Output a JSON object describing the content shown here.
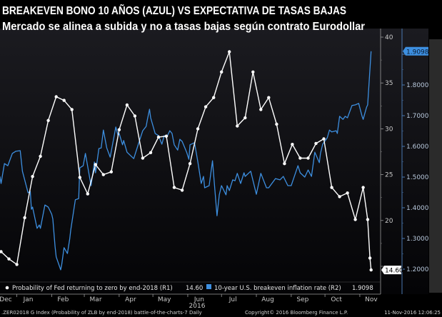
{
  "title": {
    "line1": "BREAKEVEN BONO 10 AÑOS (AZUL) VS EXPECTATIVA DE TASAS BAJAS",
    "line2": "Mercado se alinea a  subida y no a tasas bajas según contrato Eurodollar"
  },
  "footer": {
    "index": ".ZER02018 G Index (Probability of ZLB by end-2018) battle-of-the-charts-7  Daily",
    "copyright": "Copyright© 2016 Bloomberg Finance L.P.",
    "timestamp": "11-Nov-2016 12:06:25"
  },
  "colors": {
    "background": "#0b0b0e",
    "series_white": "#ffffff",
    "series_blue": "#3d8fe0",
    "panel": "#2b2b2b"
  },
  "chart_data": {
    "type": "line",
    "year_label": "2016",
    "x_ticks": [
      "Dec",
      "Jan",
      "Feb",
      "Mar",
      "Apr",
      "May",
      "Jun",
      "Jul",
      "Aug",
      "Sep",
      "Oct",
      "Nov"
    ],
    "x_tick_dates": [
      "2015-12-01",
      "2016-01-01",
      "2016-02-01",
      "2016-03-01",
      "2016-04-01",
      "2016-05-01",
      "2016-06-01",
      "2016-07-01",
      "2016-08-01",
      "2016-09-01",
      "2016-10-01",
      "2016-11-01"
    ],
    "xlim": [
      "2015-12-18",
      "2016-11-18"
    ],
    "y_left": {
      "label": "R1",
      "ylim": [
        14,
        40.5
      ],
      "ticks": [
        "15",
        "20",
        "25",
        "30",
        "35",
        "40"
      ]
    },
    "y_right": {
      "label": "R2",
      "ylim": [
        1.19,
        1.95
      ],
      "ticks": [
        "1.2000",
        "1.3000",
        "1.4000",
        "1.5000",
        "1.6000",
        "1.7000",
        "1.8000",
        "1.9000"
      ]
    },
    "grid": false,
    "legend_position": "bottom",
    "series": [
      {
        "name": "Probability of Fed returning to zero by end-2018 (R1)",
        "last_value": "14.60",
        "axis": "R1",
        "color": "#ffffff",
        "marker": "circle",
        "points": [
          [
            "2015-12-18",
            16.6
          ],
          [
            "2015-12-25",
            15.8
          ],
          [
            "2016-01-01",
            15.2
          ],
          [
            "2016-01-08",
            20.3
          ],
          [
            "2016-01-15",
            24.8
          ],
          [
            "2016-01-22",
            27.0
          ],
          [
            "2016-01-29",
            30.9
          ],
          [
            "2016-02-05",
            33.5
          ],
          [
            "2016-02-12",
            33.1
          ],
          [
            "2016-02-19",
            32.1
          ],
          [
            "2016-02-26",
            24.7
          ],
          [
            "2016-03-04",
            22.9
          ],
          [
            "2016-03-11",
            26.1
          ],
          [
            "2016-03-18",
            25.0
          ],
          [
            "2016-03-25",
            25.3
          ],
          [
            "2016-04-01",
            29.9
          ],
          [
            "2016-04-08",
            32.6
          ],
          [
            "2016-04-15",
            31.4
          ],
          [
            "2016-04-22",
            26.8
          ],
          [
            "2016-04-29",
            27.4
          ],
          [
            "2016-05-06",
            29.1
          ],
          [
            "2016-05-13",
            29.2
          ],
          [
            "2016-05-20",
            23.6
          ],
          [
            "2016-05-27",
            23.3
          ],
          [
            "2016-06-03",
            26.2
          ],
          [
            "2016-06-10",
            30.0
          ],
          [
            "2016-06-17",
            32.4
          ],
          [
            "2016-06-24",
            33.4
          ],
          [
            "2016-07-01",
            36.2
          ],
          [
            "2016-07-08",
            38.4
          ],
          [
            "2016-07-15",
            30.3
          ],
          [
            "2016-07-22",
            31.2
          ],
          [
            "2016-07-29",
            36.2
          ],
          [
            "2016-08-05",
            32.1
          ],
          [
            "2016-08-12",
            33.4
          ],
          [
            "2016-08-19",
            30.5
          ],
          [
            "2016-08-26",
            26.2
          ],
          [
            "2016-09-02",
            28.3
          ],
          [
            "2016-09-09",
            26.8
          ],
          [
            "2016-09-16",
            26.8
          ],
          [
            "2016-09-23",
            28.4
          ],
          [
            "2016-09-30",
            28.9
          ],
          [
            "2016-10-07",
            23.6
          ],
          [
            "2016-10-14",
            22.6
          ],
          [
            "2016-10-21",
            23.0
          ],
          [
            "2016-10-28",
            20.1
          ],
          [
            "2016-11-04",
            23.6
          ],
          [
            "2016-11-08",
            20.1
          ],
          [
            "2016-11-10",
            15.9
          ],
          [
            "2016-11-11",
            14.6
          ]
        ]
      },
      {
        "name": "10-year U.S. breakeven inflation rate (R2)",
        "last_value": "1.9098",
        "axis": "R2",
        "color": "#3d8fe0",
        "marker": "none",
        "points": [
          [
            "2015-12-17",
            1.502
          ],
          [
            "2015-12-18",
            1.479
          ],
          [
            "2015-12-21",
            1.544
          ],
          [
            "2015-12-24",
            1.537
          ],
          [
            "2015-12-28",
            1.577
          ],
          [
            "2015-12-31",
            1.584
          ],
          [
            "2016-01-04",
            1.586
          ],
          [
            "2016-01-06",
            1.519
          ],
          [
            "2016-01-11",
            1.449
          ],
          [
            "2016-01-13",
            1.453
          ],
          [
            "2016-01-14",
            1.395
          ],
          [
            "2016-01-15",
            1.402
          ],
          [
            "2016-01-19",
            1.333
          ],
          [
            "2016-01-21",
            1.344
          ],
          [
            "2016-01-22",
            1.333
          ],
          [
            "2016-01-26",
            1.409
          ],
          [
            "2016-01-29",
            1.402
          ],
          [
            "2016-02-01",
            1.379
          ],
          [
            "2016-02-02",
            1.363
          ],
          [
            "2016-02-04",
            1.274
          ],
          [
            "2016-02-05",
            1.24
          ],
          [
            "2016-02-09",
            1.198
          ],
          [
            "2016-02-10",
            1.216
          ],
          [
            "2016-02-12",
            1.27
          ],
          [
            "2016-02-15",
            1.251
          ],
          [
            "2016-02-17",
            1.298
          ],
          [
            "2016-02-18",
            1.328
          ],
          [
            "2016-02-22",
            1.426
          ],
          [
            "2016-02-25",
            1.43
          ],
          [
            "2016-02-26",
            1.53
          ],
          [
            "2016-02-29",
            1.537
          ],
          [
            "2016-03-02",
            1.577
          ],
          [
            "2016-03-07",
            1.472
          ],
          [
            "2016-03-10",
            1.549
          ],
          [
            "2016-03-11",
            1.514
          ],
          [
            "2016-03-14",
            1.593
          ],
          [
            "2016-03-16",
            1.595
          ],
          [
            "2016-03-18",
            1.653
          ],
          [
            "2016-03-21",
            1.595
          ],
          [
            "2016-03-24",
            1.565
          ],
          [
            "2016-03-29",
            1.663
          ],
          [
            "2016-03-31",
            1.635
          ],
          [
            "2016-04-01",
            1.642
          ],
          [
            "2016-04-04",
            1.605
          ],
          [
            "2016-04-05",
            1.619
          ],
          [
            "2016-04-08",
            1.581
          ],
          [
            "2016-04-14",
            1.56
          ],
          [
            "2016-04-18",
            1.607
          ],
          [
            "2016-04-22",
            1.651
          ],
          [
            "2016-04-25",
            1.665
          ],
          [
            "2016-04-26",
            1.686
          ],
          [
            "2016-04-28",
            1.721
          ],
          [
            "2016-04-29",
            1.693
          ],
          [
            "2016-05-03",
            1.642
          ],
          [
            "2016-05-06",
            1.635
          ],
          [
            "2016-05-09",
            1.607
          ],
          [
            "2016-05-11",
            1.635
          ],
          [
            "2016-05-13",
            1.628
          ],
          [
            "2016-05-16",
            1.651
          ],
          [
            "2016-05-18",
            1.642
          ],
          [
            "2016-05-20",
            1.605
          ],
          [
            "2016-05-23",
            1.588
          ],
          [
            "2016-05-25",
            1.623
          ],
          [
            "2016-05-27",
            1.616
          ],
          [
            "2016-05-31",
            1.581
          ],
          [
            "2016-06-02",
            1.558
          ],
          [
            "2016-06-03",
            1.605
          ],
          [
            "2016-06-07",
            1.612
          ],
          [
            "2016-06-10",
            1.549
          ],
          [
            "2016-06-13",
            1.479
          ],
          [
            "2016-06-15",
            1.502
          ],
          [
            "2016-06-16",
            1.465
          ],
          [
            "2016-06-20",
            1.472
          ],
          [
            "2016-06-23",
            1.553
          ],
          [
            "2016-06-27",
            1.374
          ],
          [
            "2016-06-29",
            1.442
          ],
          [
            "2016-07-01",
            1.472
          ],
          [
            "2016-07-05",
            1.442
          ],
          [
            "2016-07-06",
            1.472
          ],
          [
            "2016-07-08",
            1.456
          ],
          [
            "2016-07-11",
            1.491
          ],
          [
            "2016-07-13",
            1.488
          ],
          [
            "2016-07-15",
            1.512
          ],
          [
            "2016-07-18",
            1.479
          ],
          [
            "2016-07-21",
            1.514
          ],
          [
            "2016-07-22",
            1.502
          ],
          [
            "2016-07-27",
            1.519
          ],
          [
            "2016-08-01",
            1.444
          ],
          [
            "2016-08-05",
            1.512
          ],
          [
            "2016-08-10",
            1.465
          ],
          [
            "2016-08-12",
            1.465
          ],
          [
            "2016-08-18",
            1.495
          ],
          [
            "2016-08-22",
            1.491
          ],
          [
            "2016-08-25",
            1.502
          ],
          [
            "2016-08-29",
            1.472
          ],
          [
            "2016-09-01",
            1.472
          ],
          [
            "2016-09-06",
            1.526
          ],
          [
            "2016-09-07",
            1.537
          ],
          [
            "2016-09-09",
            1.514
          ],
          [
            "2016-09-13",
            1.5
          ],
          [
            "2016-09-16",
            1.523
          ],
          [
            "2016-09-19",
            1.502
          ],
          [
            "2016-09-22",
            1.581
          ],
          [
            "2016-09-26",
            1.547
          ],
          [
            "2016-09-27",
            1.577
          ],
          [
            "2016-09-29",
            1.607
          ],
          [
            "2016-10-03",
            1.628
          ],
          [
            "2016-10-05",
            1.653
          ],
          [
            "2016-10-07",
            1.647
          ],
          [
            "2016-10-11",
            1.651
          ],
          [
            "2016-10-12",
            1.642
          ],
          [
            "2016-10-14",
            1.698
          ],
          [
            "2016-10-17",
            1.688
          ],
          [
            "2016-10-19",
            1.698
          ],
          [
            "2016-10-21",
            1.693
          ],
          [
            "2016-10-25",
            1.733
          ],
          [
            "2016-10-28",
            1.735
          ],
          [
            "2016-10-31",
            1.74
          ],
          [
            "2016-11-03",
            1.698
          ],
          [
            "2016-11-04",
            1.688
          ],
          [
            "2016-11-07",
            1.728
          ],
          [
            "2016-11-08",
            1.735
          ],
          [
            "2016-11-11",
            1.9098
          ]
        ]
      }
    ]
  }
}
